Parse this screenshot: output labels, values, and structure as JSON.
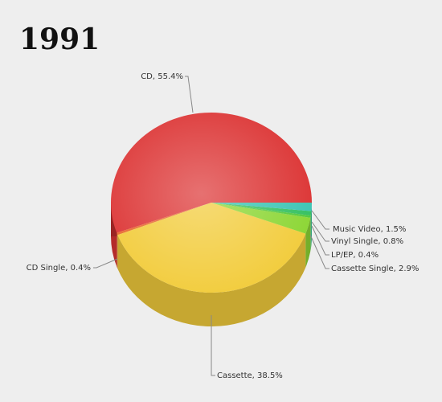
{
  "chart_data": {
    "type": "pie3d",
    "title": "1991",
    "values": [
      55.4,
      0.4,
      38.5,
      2.9,
      0.4,
      0.8,
      1.5
    ],
    "value_labels": [
      "CD, 55.4%",
      "CD Single, 0.4%",
      "Cassette, 38.5%",
      "Cassette Single, 2.9%",
      "LP/EP, 0.4%",
      "Vinyl Single, 0.8%",
      "Music Video, 1.5%"
    ],
    "colors": [
      "#dc3434",
      "#e8682c",
      "#f2cc3c",
      "#8cd634",
      "#52c83c",
      "#34c060",
      "#3cc4b4"
    ]
  }
}
